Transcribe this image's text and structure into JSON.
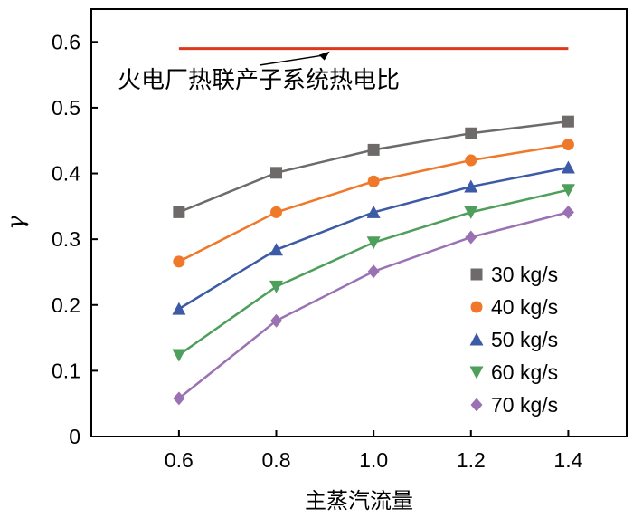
{
  "chart_data": {
    "type": "line",
    "title": "",
    "xlabel": "主蒸汽流量",
    "ylabel": "γ",
    "x": [
      0.6,
      0.8,
      1.0,
      1.2,
      1.4
    ],
    "x_tick_labels": [
      "0.6",
      "0.8",
      "1.0",
      "1.2",
      "1.4"
    ],
    "xlim": [
      0.42,
      1.52
    ],
    "ylim": [
      0,
      0.65
    ],
    "y_ticks": [
      0,
      0.1,
      0.2,
      0.3,
      0.4,
      0.5,
      0.6
    ],
    "y_tick_labels": [
      "0",
      "0.1",
      "0.2",
      "0.3",
      "0.4",
      "0.5",
      "0.6"
    ],
    "grid": false,
    "legend_position": "bottom-right",
    "series": [
      {
        "name": "30 kg/s",
        "values": [
          0.341,
          0.401,
          0.436,
          0.461,
          0.479
        ],
        "color": "#6e6a6a",
        "marker": "square"
      },
      {
        "name": "40 kg/s",
        "values": [
          0.266,
          0.341,
          0.388,
          0.42,
          0.444
        ],
        "color": "#f0782a",
        "marker": "circle"
      },
      {
        "name": "50 kg/s",
        "values": [
          0.194,
          0.284,
          0.341,
          0.38,
          0.409
        ],
        "color": "#3c5aa6",
        "marker": "triangle-up"
      },
      {
        "name": "60 kg/s",
        "values": [
          0.124,
          0.228,
          0.295,
          0.341,
          0.375
        ],
        "color": "#4e9e5c",
        "marker": "triangle-down"
      },
      {
        "name": "70 kg/s",
        "values": [
          0.058,
          0.176,
          0.251,
          0.303,
          0.341
        ],
        "color": "#9a72b4",
        "marker": "diamond"
      }
    ],
    "reference_line": {
      "y": 0.59,
      "x_range": [
        0.6,
        1.4
      ],
      "color": "#e0361c"
    },
    "annotation": {
      "text": "火电厂热联产子系统热电比",
      "arrow_to": {
        "x": 0.91,
        "y": 0.59
      }
    }
  }
}
